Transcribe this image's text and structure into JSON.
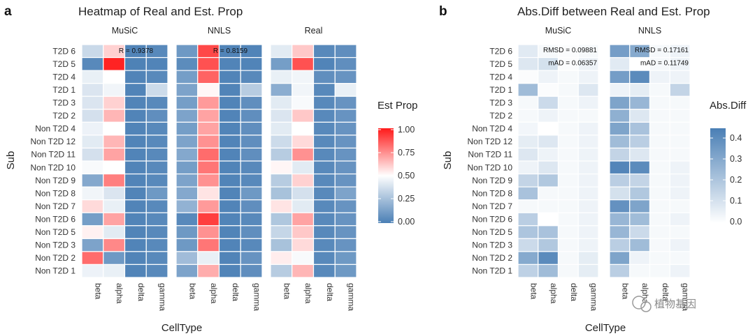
{
  "chart_data": [
    {
      "type": "heatmap",
      "panel_label": "a",
      "title": "Heatmap of Real and Est. Prop",
      "xlabel": "CellType",
      "ylabel": "Sub",
      "facets": [
        "MuSiC",
        "NNLS",
        "Real"
      ],
      "categories": [
        "beta",
        "alpha",
        "delta",
        "gamma"
      ],
      "rows": [
        "T2D 6",
        "T2D 5",
        "T2D 4",
        "T2D 1",
        "T2D 3",
        "T2D 2",
        "Non T2D 4",
        "Non T2D 12",
        "Non T2D 11",
        "Non T2D 10",
        "Non T2D 9",
        "Non T2D 8",
        "Non T2D 7",
        "Non T2D 6",
        "Non T2D 5",
        "Non T2D 3",
        "Non T2D 2",
        "Non T2D 1"
      ],
      "values": {
        "MuSiC": [
          [
            0.35,
            0.6,
            0.02,
            0.04
          ],
          [
            0.04,
            0.98,
            0.01,
            0.02
          ],
          [
            0.44,
            0.5,
            0.02,
            0.04
          ],
          [
            0.4,
            0.46,
            0.02,
            0.36
          ],
          [
            0.4,
            0.6,
            0.02,
            0.04
          ],
          [
            0.38,
            0.66,
            0.02,
            0.06
          ],
          [
            0.45,
            0.5,
            0.02,
            0.04
          ],
          [
            0.42,
            0.66,
            0.02,
            0.04
          ],
          [
            0.38,
            0.7,
            0.02,
            0.04
          ],
          [
            0.48,
            0.5,
            0.02,
            0.04
          ],
          [
            0.16,
            0.78,
            0.02,
            0.04
          ],
          [
            0.46,
            0.4,
            0.02,
            0.1
          ],
          [
            0.58,
            0.44,
            0.02,
            0.04
          ],
          [
            0.12,
            0.7,
            0.02,
            0.04
          ],
          [
            0.53,
            0.42,
            0.02,
            0.04
          ],
          [
            0.14,
            0.76,
            0.02,
            0.04
          ],
          [
            0.82,
            0.1,
            0.02,
            0.04
          ],
          [
            0.45,
            0.44,
            0.02,
            0.04
          ]
        ],
        "NNLS": [
          [
            0.1,
            0.9,
            0.02,
            0.02
          ],
          [
            0.05,
            0.88,
            0.02,
            0.02
          ],
          [
            0.12,
            0.84,
            0.02,
            0.04
          ],
          [
            0.14,
            0.52,
            0.02,
            0.3
          ],
          [
            0.12,
            0.72,
            0.02,
            0.06
          ],
          [
            0.14,
            0.7,
            0.02,
            0.06
          ],
          [
            0.12,
            0.7,
            0.02,
            0.06
          ],
          [
            0.14,
            0.74,
            0.02,
            0.06
          ],
          [
            0.16,
            0.82,
            0.02,
            0.06
          ],
          [
            0.12,
            0.8,
            0.02,
            0.04
          ],
          [
            0.14,
            0.74,
            0.02,
            0.04
          ],
          [
            0.16,
            0.56,
            0.02,
            0.1
          ],
          [
            0.2,
            0.72,
            0.02,
            0.06
          ],
          [
            0.04,
            0.92,
            0.02,
            0.04
          ],
          [
            0.1,
            0.74,
            0.02,
            0.06
          ],
          [
            0.1,
            0.8,
            0.02,
            0.04
          ],
          [
            0.24,
            0.44,
            0.02,
            0.08
          ],
          [
            0.14,
            0.68,
            0.02,
            0.06
          ]
        ],
        "Real": [
          [
            0.42,
            0.62,
            0.04,
            0.06
          ],
          [
            0.12,
            0.88,
            0.02,
            0.06
          ],
          [
            0.44,
            0.46,
            0.06,
            0.08
          ],
          [
            0.18,
            0.46,
            0.04,
            0.44
          ],
          [
            0.42,
            0.48,
            0.04,
            0.08
          ],
          [
            0.4,
            0.62,
            0.04,
            0.08
          ],
          [
            0.42,
            0.5,
            0.04,
            0.08
          ],
          [
            0.36,
            0.58,
            0.04,
            0.08
          ],
          [
            0.3,
            0.74,
            0.04,
            0.08
          ],
          [
            0.52,
            0.42,
            0.04,
            0.08
          ],
          [
            0.3,
            0.6,
            0.04,
            0.08
          ],
          [
            0.26,
            0.38,
            0.04,
            0.14
          ],
          [
            0.56,
            0.42,
            0.04,
            0.08
          ],
          [
            0.28,
            0.7,
            0.04,
            0.08
          ],
          [
            0.34,
            0.62,
            0.04,
            0.08
          ],
          [
            0.26,
            0.58,
            0.04,
            0.08
          ],
          [
            0.54,
            0.48,
            0.04,
            0.1
          ],
          [
            0.3,
            0.66,
            0.04,
            0.1
          ]
        ]
      },
      "annotations": [
        {
          "facet": "MuSiC",
          "text": "R = 0.9378"
        },
        {
          "facet": "NNLS",
          "text": "R = 0.8159"
        }
      ],
      "legend": {
        "title": "Est Prop",
        "ticks": [
          "1.00",
          "0.75",
          "0.50",
          "0.25",
          "0.00"
        ],
        "range": [
          0,
          1
        ],
        "low_color": "#4a7fb5",
        "mid_color": "#ffffff",
        "high_color": "#ff1a1a"
      }
    },
    {
      "type": "heatmap",
      "panel_label": "b",
      "title": "Abs.Diff between Real and Est. Prop",
      "xlabel": "CellType",
      "ylabel": "Sub",
      "facets": [
        "MuSiC",
        "NNLS"
      ],
      "categories": [
        "beta",
        "alpha",
        "delta",
        "gamma"
      ],
      "rows": [
        "T2D 6",
        "T2D 5",
        "T2D 4",
        "T2D 1",
        "T2D 3",
        "T2D 2",
        "Non T2D 4",
        "Non T2D 12",
        "Non T2D 11",
        "Non T2D 10",
        "Non T2D 9",
        "Non T2D 8",
        "Non T2D 7",
        "Non T2D 6",
        "Non T2D 5",
        "Non T2D 3",
        "Non T2D 2",
        "Non T2D 1"
      ],
      "values": {
        "MuSiC": [
          [
            0.07,
            0.02,
            0.01,
            0.02
          ],
          [
            0.08,
            0.1,
            0.01,
            0.04
          ],
          [
            0.01,
            0.04,
            0.02,
            0.04
          ],
          [
            0.22,
            0.01,
            0.02,
            0.08
          ],
          [
            0.02,
            0.12,
            0.02,
            0.04
          ],
          [
            0.02,
            0.04,
            0.02,
            0.02
          ],
          [
            0.03,
            0.0,
            0.02,
            0.04
          ],
          [
            0.06,
            0.08,
            0.02,
            0.04
          ],
          [
            0.08,
            0.04,
            0.02,
            0.04
          ],
          [
            0.04,
            0.08,
            0.02,
            0.04
          ],
          [
            0.14,
            0.18,
            0.02,
            0.04
          ],
          [
            0.2,
            0.02,
            0.02,
            0.04
          ],
          [
            0.02,
            0.02,
            0.02,
            0.04
          ],
          [
            0.16,
            0.0,
            0.02,
            0.04
          ],
          [
            0.19,
            0.2,
            0.02,
            0.04
          ],
          [
            0.12,
            0.18,
            0.02,
            0.04
          ],
          [
            0.28,
            0.38,
            0.02,
            0.06
          ],
          [
            0.15,
            0.22,
            0.02,
            0.06
          ]
        ],
        "NNLS": [
          [
            0.32,
            0.28,
            0.02,
            0.04
          ],
          [
            0.07,
            0.0,
            0.02,
            0.04
          ],
          [
            0.32,
            0.38,
            0.04,
            0.04
          ],
          [
            0.04,
            0.06,
            0.02,
            0.14
          ],
          [
            0.3,
            0.24,
            0.02,
            0.02
          ],
          [
            0.26,
            0.08,
            0.02,
            0.02
          ],
          [
            0.3,
            0.2,
            0.02,
            0.02
          ],
          [
            0.22,
            0.16,
            0.02,
            0.02
          ],
          [
            0.14,
            0.08,
            0.02,
            0.02
          ],
          [
            0.4,
            0.38,
            0.02,
            0.04
          ],
          [
            0.16,
            0.14,
            0.02,
            0.04
          ],
          [
            0.1,
            0.18,
            0.02,
            0.04
          ],
          [
            0.36,
            0.3,
            0.02,
            0.02
          ],
          [
            0.24,
            0.22,
            0.02,
            0.04
          ],
          [
            0.24,
            0.12,
            0.02,
            0.02
          ],
          [
            0.16,
            0.22,
            0.02,
            0.04
          ],
          [
            0.3,
            0.04,
            0.02,
            0.02
          ],
          [
            0.16,
            0.02,
            0.02,
            0.04
          ]
        ]
      },
      "annotations": [
        {
          "facet": "MuSiC",
          "lines": [
            "RMSD = 0.09881",
            "mAD = 0.06357"
          ]
        },
        {
          "facet": "NNLS",
          "lines": [
            "RMSD = 0.17161",
            "mAD = 0.11749"
          ]
        }
      ],
      "legend": {
        "title": "Abs.Diff",
        "ticks": [
          "0.4",
          "0.3",
          "0.2",
          "0.1",
          "0.0"
        ],
        "range": [
          0,
          0.42
        ],
        "low_color": "#ffffff",
        "high_color": "#4a7fb5"
      }
    }
  ],
  "watermark": "植物基因"
}
